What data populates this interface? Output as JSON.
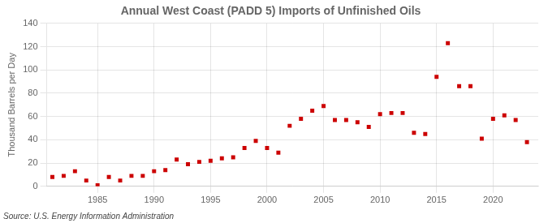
{
  "chart_data": {
    "type": "scatter",
    "title": "Annual West Coast (PADD 5) Imports of Unfinished Oils",
    "y_label": "Thousand Barrels per Day",
    "annotations": [
      "Source: U.S. Energy Information Administration"
    ],
    "x": [
      1981,
      1982,
      1983,
      1984,
      1985,
      1986,
      1987,
      1988,
      1989,
      1990,
      1991,
      1992,
      1993,
      1994,
      1995,
      1996,
      1997,
      1998,
      1999,
      2000,
      2001,
      2002,
      2003,
      2004,
      2005,
      2006,
      2007,
      2008,
      2009,
      2010,
      2011,
      2012,
      2013,
      2014,
      2015,
      2016,
      2017,
      2018,
      2019,
      2020,
      2021,
      2022,
      2023
    ],
    "values": [
      8,
      9,
      13,
      5,
      1,
      8,
      5,
      9,
      9,
      13,
      14,
      23,
      19,
      21,
      22,
      24,
      25,
      33,
      39,
      33,
      29,
      52,
      58,
      65,
      69,
      57,
      57,
      55,
      51,
      62,
      63,
      63,
      46,
      45,
      94,
      123,
      86,
      86,
      41,
      58,
      61,
      57,
      38
    ],
    "color": "#cc0000",
    "marker": "square",
    "xlim": [
      1980.5,
      2024
    ],
    "xticks": [
      1985,
      1990,
      1995,
      2000,
      2005,
      2010,
      2015,
      2020
    ],
    "ylim": [
      0,
      140
    ],
    "yticks": [
      0,
      20,
      40,
      60,
      80,
      100,
      120,
      140
    ],
    "grid": true
  }
}
